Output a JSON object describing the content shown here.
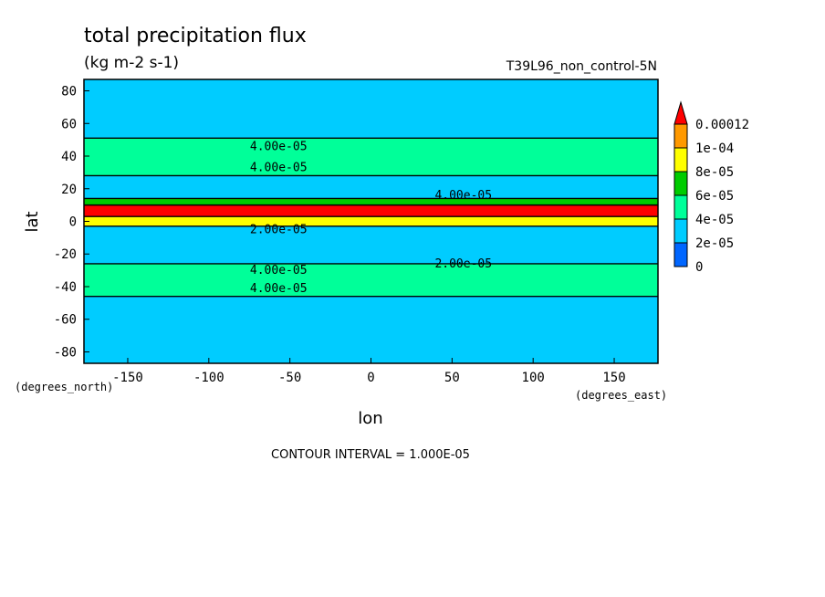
{
  "chart_data": {
    "type": "heatmap",
    "title": "total precipitation flux",
    "subtitle": "(kg m-2 s-1)",
    "run_label": "T39L96_non_control-5N",
    "xlabel": "lon",
    "ylabel": "lat",
    "x_units": "(degrees_east)",
    "y_units": "(degrees_north)",
    "xlim": [
      -177,
      177
    ],
    "ylim": [
      -87,
      87
    ],
    "xticks": [
      -150,
      -100,
      -50,
      0,
      50,
      100,
      150
    ],
    "yticks": [
      -80,
      -60,
      -40,
      -20,
      0,
      20,
      40,
      60,
      80
    ],
    "xtick_labels": [
      "-150",
      "-100",
      "-50",
      "0",
      "50",
      "100",
      "150"
    ],
    "ytick_labels": [
      "-80",
      "-60",
      "-40",
      "-20",
      "0",
      "20",
      "40",
      "60",
      "80"
    ],
    "footer": "CONTOUR INTERVAL = 1.000E-05",
    "colorbar": {
      "levels": [
        0,
        2e-05,
        4e-05,
        6e-05,
        8e-05,
        0.0001,
        0.00012
      ],
      "labels": [
        "0",
        "2e-05",
        "4e-05",
        "6e-05",
        "8e-05",
        "1e-04",
        "0.00012"
      ],
      "colors": [
        "#0066ff",
        "#00ccff",
        "#00ff99",
        "#00cc00",
        "#ffff00",
        "#ff9900",
        "#ff0000"
      ],
      "extend": "max"
    },
    "bands": [
      {
        "lat_from": -87,
        "lat_to": -46,
        "bin": 1
      },
      {
        "lat_from": -46,
        "lat_to": -26,
        "bin": 2
      },
      {
        "lat_from": -26,
        "lat_to": -3,
        "bin": 1
      },
      {
        "lat_from": -3,
        "lat_to": 3,
        "bin": 4
      },
      {
        "lat_from": 3,
        "lat_to": 10,
        "bin": 6
      },
      {
        "lat_from": 10,
        "lat_to": 14,
        "bin": 3
      },
      {
        "lat_from": 14,
        "lat_to": 28,
        "bin": 1
      },
      {
        "lat_from": 28,
        "lat_to": 51,
        "bin": 2
      },
      {
        "lat_from": 51,
        "lat_to": 87,
        "bin": 1
      }
    ],
    "contour_labels": [
      {
        "text": "4.00e-05",
        "lon": -57,
        "lat": 46
      },
      {
        "text": "4.00e-05",
        "lon": -57,
        "lat": 33
      },
      {
        "text": "4.00e-05",
        "lon": 57,
        "lat": 16
      },
      {
        "text": "2.00e-05",
        "lon": -57,
        "lat": -5
      },
      {
        "text": "2.00e-05",
        "lon": 57,
        "lat": -26
      },
      {
        "text": "4.00e-05",
        "lon": -57,
        "lat": -30
      },
      {
        "text": "4.00e-05",
        "lon": -57,
        "lat": -41
      }
    ]
  }
}
